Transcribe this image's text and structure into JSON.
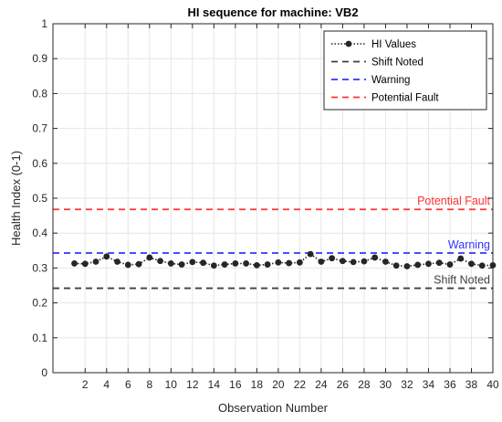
{
  "chart_data": {
    "type": "line",
    "title": "HI sequence for machine: VB2",
    "xlabel": "Observation Number",
    "ylabel": "Health Index (0-1)",
    "xlim": [
      -1,
      40
    ],
    "ylim": [
      0,
      1
    ],
    "xticks": [
      2,
      4,
      6,
      8,
      10,
      12,
      14,
      16,
      18,
      20,
      22,
      24,
      26,
      28,
      30,
      32,
      34,
      36,
      38,
      40
    ],
    "xtick_labels": [
      "2",
      "4",
      "6",
      "8",
      "10",
      "12",
      "14",
      "16",
      "18",
      "20",
      "22",
      "24",
      "26",
      "28",
      "30",
      "32",
      "34",
      "36",
      "38",
      "40"
    ],
    "yticks": [
      0,
      0.1,
      0.2,
      0.3,
      0.4,
      0.5,
      0.6,
      0.7,
      0.8,
      0.9,
      1
    ],
    "ytick_labels": [
      "0",
      "0.1",
      "0.2",
      "0.3",
      "0.4",
      "0.5",
      "0.6",
      "0.7",
      "0.8",
      "0.9",
      "1"
    ],
    "grid": true,
    "legend_position": "top-right",
    "series": [
      {
        "name": "HI Values",
        "color": "#262626",
        "style": "dotted-with-markers",
        "x": [
          1,
          2,
          3,
          4,
          5,
          6,
          7,
          8,
          9,
          10,
          11,
          12,
          13,
          14,
          15,
          16,
          17,
          18,
          19,
          20,
          21,
          22,
          23,
          24,
          25,
          26,
          27,
          28,
          29,
          30,
          31,
          32,
          33,
          34,
          35,
          36,
          37,
          38,
          39,
          40
        ],
        "y": [
          0.313,
          0.312,
          0.318,
          0.333,
          0.318,
          0.309,
          0.311,
          0.33,
          0.32,
          0.313,
          0.31,
          0.317,
          0.315,
          0.307,
          0.31,
          0.313,
          0.313,
          0.308,
          0.31,
          0.316,
          0.314,
          0.316,
          0.34,
          0.318,
          0.328,
          0.32,
          0.317,
          0.319,
          0.33,
          0.318,
          0.307,
          0.305,
          0.309,
          0.312,
          0.315,
          0.31,
          0.327,
          0.312,
          0.307,
          0.308
        ]
      }
    ],
    "thresholds": [
      {
        "name": "Shift Noted",
        "value": 0.242,
        "color": "#404040",
        "label": "Shift Noted"
      },
      {
        "name": "Warning",
        "value": 0.343,
        "color": "#3333ff",
        "label": "Warning"
      },
      {
        "name": "Potential Fault",
        "value": 0.468,
        "color": "#ff3333",
        "label": "Potential Fault"
      }
    ]
  }
}
